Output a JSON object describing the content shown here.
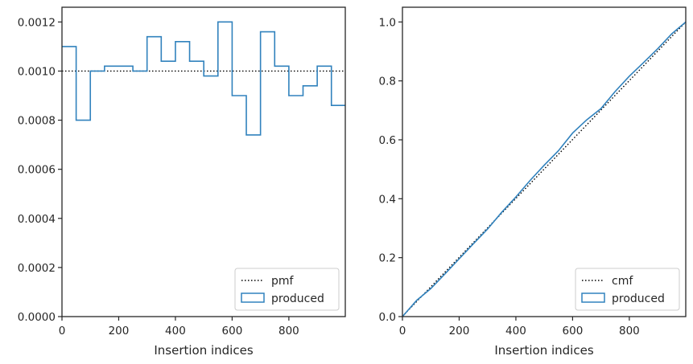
{
  "chart_data": [
    {
      "type": "histogram-step",
      "xlabel": "Insertion indices",
      "ylabel": "",
      "xlim": [
        0,
        999
      ],
      "ylim": [
        0,
        0.00126
      ],
      "grid": false,
      "legend_position": "lower-right",
      "xticks": [
        0,
        200,
        400,
        600,
        800
      ],
      "xtick_labels": [
        "0",
        "200",
        "400",
        "600",
        "800"
      ],
      "yticks": [
        0,
        0.0002,
        0.0004,
        0.0006,
        0.0008,
        0.001,
        0.0012
      ],
      "ytick_labels": [
        "0.0000",
        "0.0002",
        "0.0004",
        "0.0006",
        "0.0008",
        "0.0010",
        "0.0012"
      ],
      "bin_edges": [
        0,
        50,
        100,
        150,
        200,
        250,
        300,
        350,
        400,
        450,
        500,
        550,
        600,
        650,
        700,
        750,
        800,
        850,
        900,
        950,
        999
      ],
      "series": [
        {
          "name": "pmf",
          "style": "dotted",
          "color": "#000000",
          "x": [
            0,
            999
          ],
          "y": [
            0.001,
            0.001
          ]
        },
        {
          "name": "produced",
          "style": "step",
          "color": "#3182bd",
          "values": [
            0.0011,
            0.0008,
            0.001,
            0.00102,
            0.00102,
            0.001,
            0.00114,
            0.00104,
            0.00112,
            0.00104,
            0.00098,
            0.0012,
            0.0009,
            0.00074,
            0.00116,
            0.00102,
            0.0009,
            0.00094,
            0.00102,
            0.00086
          ]
        }
      ],
      "legend": [
        "pmf",
        "produced"
      ]
    },
    {
      "type": "line",
      "xlabel": "Insertion indices",
      "ylabel": "",
      "xlim": [
        0,
        999
      ],
      "ylim": [
        0,
        1.05
      ],
      "grid": false,
      "legend_position": "lower-right",
      "xticks": [
        0,
        200,
        400,
        600,
        800
      ],
      "xtick_labels": [
        "0",
        "200",
        "400",
        "600",
        "800"
      ],
      "yticks": [
        0,
        0.2,
        0.4,
        0.6,
        0.8,
        1.0
      ],
      "ytick_labels": [
        "0.0",
        "0.2",
        "0.4",
        "0.6",
        "0.8",
        "1.0"
      ],
      "series": [
        {
          "name": "cmf",
          "style": "dotted",
          "color": "#000000",
          "x": [
            0,
            999
          ],
          "y": [
            0.001,
            1.0
          ]
        },
        {
          "name": "produced",
          "style": "solid",
          "color": "#3182bd",
          "x": [
            0,
            50,
            100,
            150,
            200,
            250,
            300,
            350,
            400,
            450,
            500,
            550,
            600,
            650,
            700,
            750,
            800,
            850,
            900,
            950,
            999
          ],
          "y": [
            0,
            0.055,
            0.095,
            0.145,
            0.196,
            0.247,
            0.297,
            0.354,
            0.406,
            0.462,
            0.514,
            0.563,
            0.623,
            0.668,
            0.706,
            0.764,
            0.816,
            0.862,
            0.909,
            0.96,
            1.0
          ]
        }
      ],
      "legend": [
        "cmf",
        "produced"
      ]
    }
  ]
}
